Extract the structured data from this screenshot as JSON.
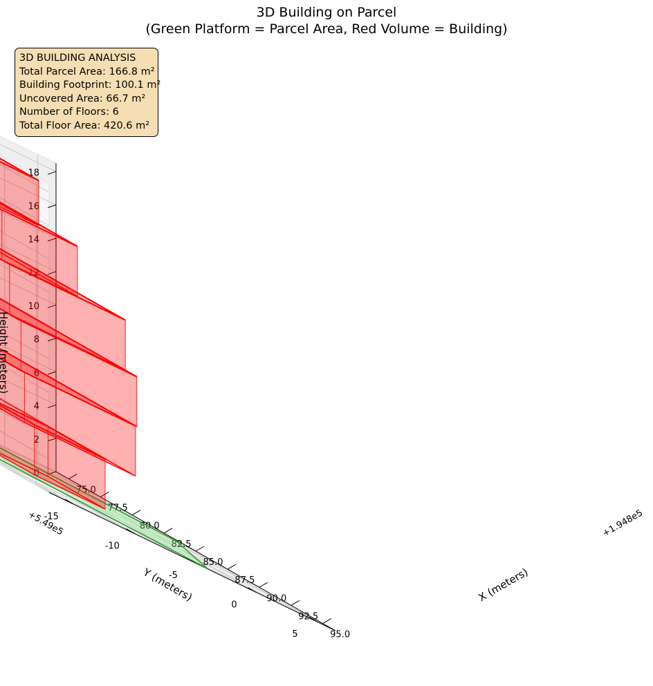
{
  "title_line1": "3D Building on Parcel",
  "title_line2": "(Green Platform = Parcel Area, Red Volume = Building)",
  "info_box": {
    "heading": "3D BUILDING ANALYSIS",
    "parcel_area": "Total Parcel Area: 166.8 m²",
    "footprint": "Building Footprint: 100.1 m²",
    "uncovered": "Uncovered Area: 66.7 m²",
    "floors": "Number of Floors: 6",
    "floor_area": "Total Floor Area: 420.6 m²"
  },
  "chart_data": {
    "type": "3d-bar",
    "xlabel": "X (meters)",
    "ylabel": "Y (meters)",
    "zlabel": "Height (meters)",
    "x_offset_label": "+1.948e5",
    "y_offset_label": "+5.49e5",
    "x_ticks": [
      "75.0",
      "77.5",
      "80.0",
      "82.5",
      "85.0",
      "87.5",
      "90.0",
      "92.5",
      "95.0"
    ],
    "y_ticks": [
      "-15",
      "-10",
      "-5",
      "0",
      "5"
    ],
    "z_ticks": [
      "0",
      "2",
      "4",
      "6",
      "8",
      "10",
      "12",
      "14",
      "16",
      "18"
    ],
    "xlim": [
      74,
      96
    ],
    "ylim": [
      -17,
      6.5
    ],
    "zlim": [
      0,
      18.5
    ],
    "grid": true,
    "parcel": {
      "color": "#2ca02c",
      "fill": "#90ee90",
      "polygon": [
        [
          75.2,
          -3.3
        ],
        [
          84.3,
          -16.3
        ],
        [
          95.8,
          -3.8
        ],
        [
          84.3,
          5.6
        ]
      ]
    },
    "building": {
      "color": "#ff0000",
      "floors": [
        {
          "x": [
            82.0,
            86.5
          ],
          "y": [
            -8.3,
            -2.5
          ],
          "z": [
            0,
            3
          ]
        },
        {
          "x": [
            77.8,
            88.6
          ],
          "y": [
            -11.3,
            -2.2
          ],
          "z": [
            3,
            6
          ]
        },
        {
          "x": [
            76.3,
            88.7
          ],
          "y": [
            -11.7,
            -2.2
          ],
          "z": [
            6,
            9
          ]
        },
        {
          "x": [
            76.3,
            87.8
          ],
          "y": [
            -11.7,
            -2.2
          ],
          "z": [
            9,
            12
          ]
        },
        {
          "x": [
            76.3,
            87.2
          ],
          "y": [
            -11.7,
            -5.5
          ],
          "z": [
            12,
            15
          ]
        },
        {
          "x": [
            76.4,
            85.3
          ],
          "y": [
            -10.1,
            -6.7
          ],
          "z": [
            15,
            17.7
          ]
        }
      ]
    }
  }
}
